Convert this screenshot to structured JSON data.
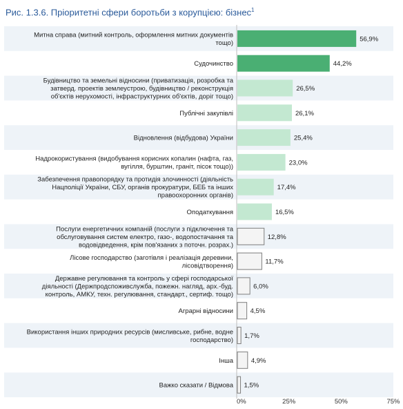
{
  "title": "Рис. 1.3.6. Пріоритетні сфери боротьби з корупцією: бізнес",
  "footnote_mark": "1",
  "chart_data": {
    "type": "bar",
    "orientation": "horizontal",
    "categories": [
      [
        "Митна справа (митний контроль, оформлення митних документів",
        "тощо)"
      ],
      [
        "Судочинство"
      ],
      [
        "Будівництво та земельні відносини (приватизація, розробка та",
        "затверд. проектів землеустрою, будівництво / реконструкція",
        "об'єктів нерухомості, інфраструктурних об'єктів, доріг тощо)"
      ],
      [
        "Публічні закупівлі"
      ],
      [
        "Відновлення (відбудова) України"
      ],
      [
        "Надрокористування (видобування корисних копалин (нафта, газ,",
        "вугілля, бурштин, граніт, пісок тощо))"
      ],
      [
        "Забезпечення правопорядку та протидія злочинності (діяльність",
        "Нацполіції України, СБУ, органів прокуратури, БЕБ та інших",
        "правоохоронних органів)"
      ],
      [
        "Оподаткування"
      ],
      [
        "Послуги енергетичних компаній (послуги з підключення та",
        "обслуговування систем електро, газо-, водопостачання та",
        "водовідведення, крім пов'язаних з поточн. розрах.)"
      ],
      [
        "Лісове господарство (заготівля і реалізація деревини,",
        "лісовідтворення)"
      ],
      [
        "Державне регулювання та контроль у сфері господарської",
        "діяльності (Держпродспоживслужба, пожежн. нагляд, арх.-буд.",
        "контроль, АМКУ, техн. регулювання, стандарт., сертиф. тощо)"
      ],
      [
        "Аграрні відносини"
      ],
      [
        "Використання інших природних ресурсів (мисливське, рибне, водне",
        "господарство)"
      ],
      [
        "Інша"
      ],
      [
        "Важко сказати / Відмова"
      ]
    ],
    "values": [
      56.9,
      44.2,
      26.5,
      26.1,
      25.4,
      23.0,
      17.4,
      16.5,
      12.8,
      11.7,
      6.0,
      4.5,
      1.7,
      4.9,
      1.5
    ],
    "value_labels": [
      "56,9%",
      "44,2%",
      "26,5%",
      "26,1%",
      "25,4%",
      "23,0%",
      "17,4%",
      "16,5%",
      "12,8%",
      "11,7%",
      "6,0%",
      "4,5%",
      "1,7%",
      "4,9%",
      "1,5%"
    ],
    "xlim": [
      0,
      75
    ],
    "xticks": [
      "0%",
      "25%",
      "50%",
      "75%"
    ],
    "colors": {
      "dark": "#4aaf73",
      "medium": "#8fd4aa",
      "light": "#c3e8d1",
      "pale": "#f4f4f4",
      "light_border": "#7d7d7d",
      "row_alt": "#eef3f8"
    }
  }
}
